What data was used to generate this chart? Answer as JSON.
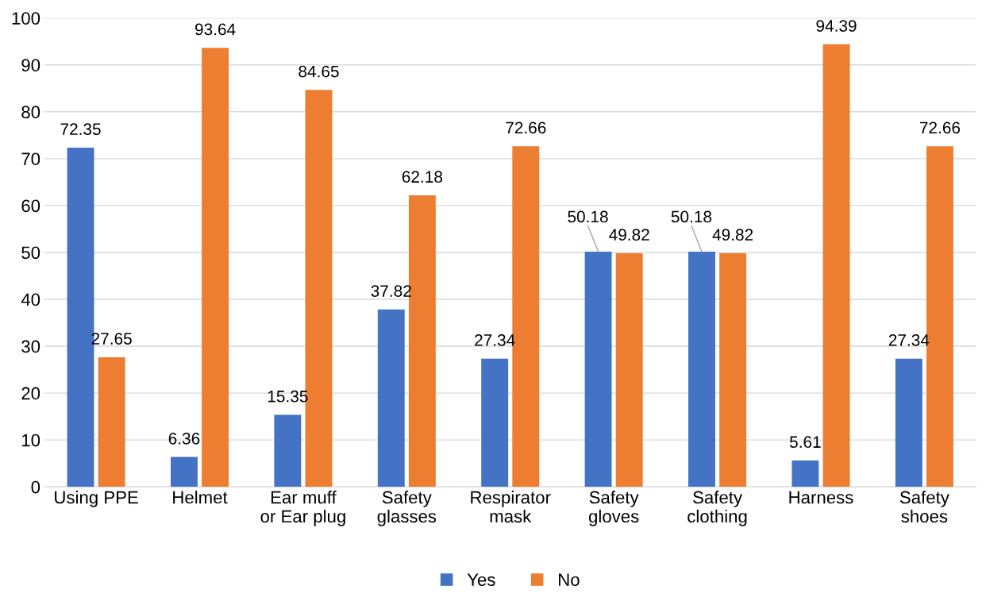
{
  "chart_data": {
    "type": "bar",
    "categories": [
      "Using PPE",
      "Helmet",
      "Ear muff\nor Ear plug",
      "Safety\nglasses",
      "Respirator\nmask",
      "Safety\ngloves",
      "Safety\nclothing",
      "Harness",
      "Safety\nshoes"
    ],
    "series": [
      {
        "name": "Yes",
        "color": "#4472c4",
        "values": [
          72.35,
          6.36,
          15.35,
          37.82,
          27.34,
          50.18,
          50.18,
          5.61,
          27.34
        ]
      },
      {
        "name": "No",
        "color": "#ed7d31",
        "values": [
          27.65,
          93.64,
          84.65,
          62.18,
          72.66,
          49.82,
          49.82,
          94.39,
          72.66
        ]
      }
    ],
    "ylim": [
      0,
      100
    ],
    "yticks": [
      0,
      10,
      20,
      30,
      40,
      50,
      60,
      70,
      80,
      90,
      100
    ],
    "grid": "y",
    "legend": "bottom",
    "data_labels": true
  }
}
